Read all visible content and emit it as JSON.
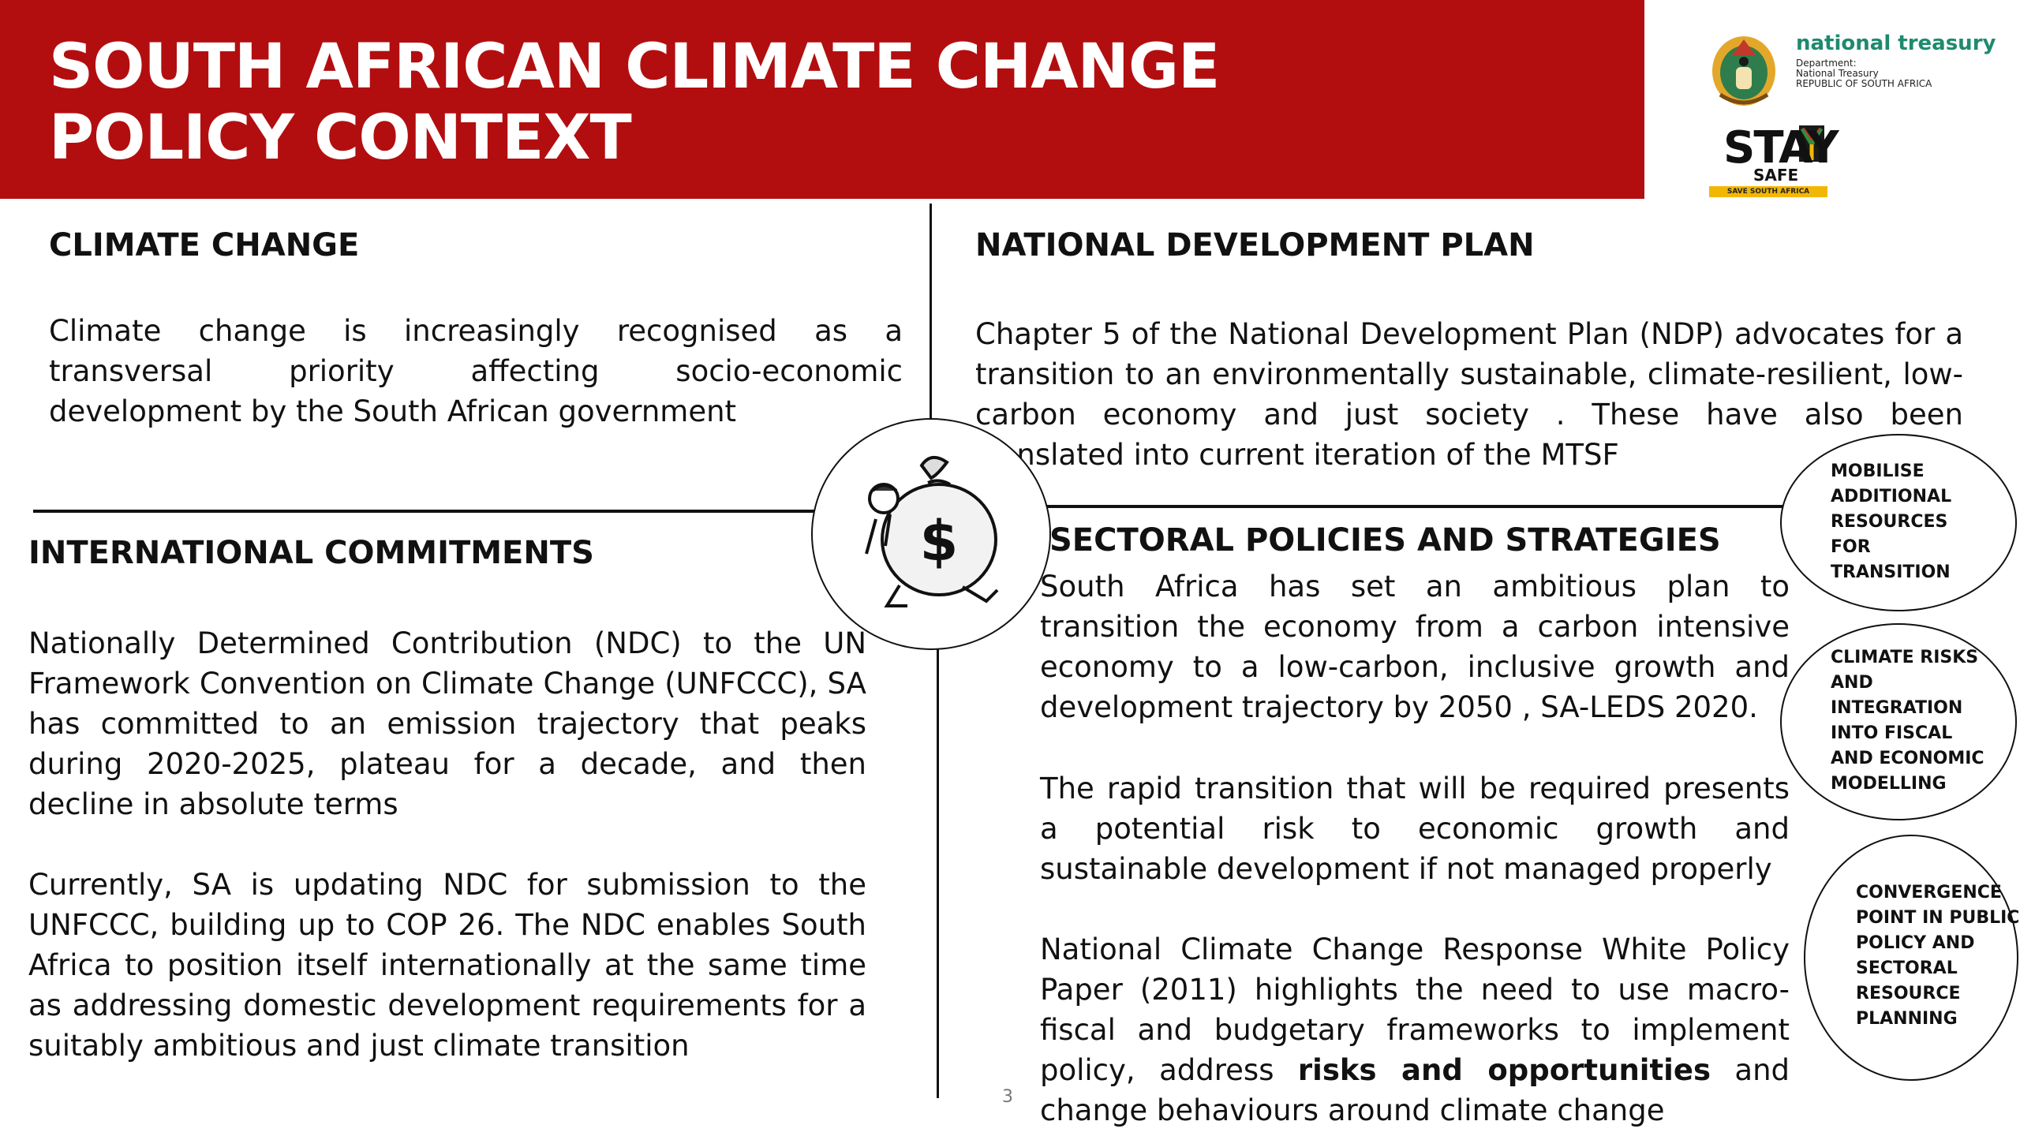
{
  "header": {
    "title": "SOUTH AFRICAN CLIMATE CHANGE POLICY CONTEXT",
    "logo": {
      "name": "national treasury",
      "department_lines": [
        "Department:",
        "National Treasury",
        "REPUBLIC OF SOUTH AFRICA"
      ]
    },
    "stay_safe": {
      "main": "STAY",
      "sub": "SAFE",
      "band": "SAVE SOUTH AFRICA"
    }
  },
  "sections": {
    "climate_change": {
      "heading": "CLIMATE CHANGE",
      "body": "Climate change is increasingly recognised as a transversal priority affecting socio-economic development by the South African government"
    },
    "national_development_plan": {
      "heading": "NATIONAL DEVELOPMENT PLAN",
      "body": "Chapter 5 of the National Development Plan (NDP) advocates for a transition to an environmentally sustainable, climate-resilient, low-carbon economy and just society . These have also been translated into current iteration of the MTSF"
    },
    "international_commitments": {
      "heading": "INTERNATIONAL COMMITMENTS",
      "body_1": "Nationally Determined Contribution (NDC) to the UN Framework Convention on Climate Change (UNFCCC), SA has committed to an emission trajectory that peaks during 2020-2025, plateau for a decade, and then decline in absolute terms",
      "body_2": "Currently, SA is updating NDC for submission to the UNFCCC, building up to COP 26. The NDC enables South Africa to position itself internationally at the same time as addressing domestic development requirements for a suitably ambitious and just climate transition"
    },
    "sectoral_policies": {
      "heading": "SECTORAL POLICIES AND STRATEGIES",
      "body_1": "South Africa has set an ambitious plan to transition the economy from a carbon intensive economy to a low-carbon, inclusive growth and development trajectory by 2050 , SA-LEDS 2020.",
      "body_2": "The rapid transition that will be required presents a potential risk to economic growth and sustainable development if not managed properly",
      "body_3_start": "National Climate Change Response White Policy Paper (2011) highlights the need to use  macro-fiscal and budgetary frameworks to implement policy, address ",
      "body_3_bold": "risks and opportunities",
      "body_3_end": " and change behaviours around climate change"
    }
  },
  "bubbles": [
    {
      "lines": [
        "MOBILISE",
        "ADDITIONAL",
        "RESOURCES",
        "FOR",
        "TRANSITION"
      ]
    },
    {
      "lines": [
        "CLIMATE RISKS",
        "AND",
        "INTEGRATION",
        "INTO FISCAL",
        "AND ECONOMIC",
        "MODELLING"
      ]
    },
    {
      "lines": [
        "CONVERGENCE",
        "POINT IN PUBLIC",
        "POLICY AND",
        "SECTORAL",
        "RESOURCE",
        "PLANNING"
      ]
    }
  ],
  "icons": {
    "center": "money-bag-icon",
    "crest": "coat-of-arms-icon",
    "stay_safe": "stay-safe-logo-icon"
  },
  "colors": {
    "banner": "#b20e10",
    "treasury_green": "#1e8a6e",
    "stay_safe_band": "#f2b705"
  },
  "footer": {
    "page_number": "3"
  }
}
